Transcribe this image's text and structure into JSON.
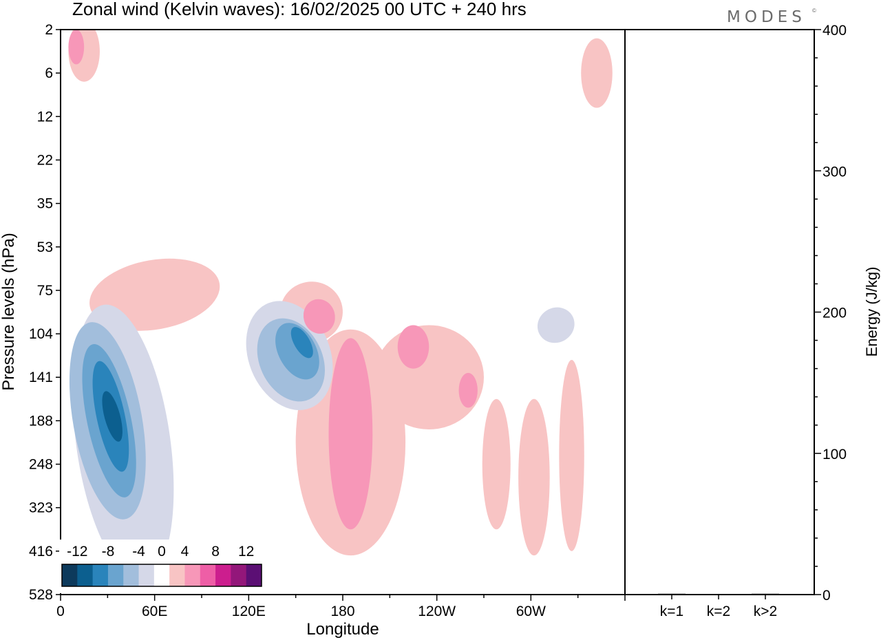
{
  "title": "Zonal wind (Kelvin waves):  16/02/2025  00 UTC  + 240 hrs",
  "brand": "MODES",
  "brand_mark": "©",
  "chart_data": [
    {
      "type": "heatmap",
      "title": "Zonal wind (Kelvin waves):  16/02/2025  00 UTC  + 240 hrs",
      "xlabel": "Longitude",
      "ylabel": "Pressure levels (hPa)",
      "x_ticks": [
        "0",
        "60E",
        "120E",
        "180",
        "120W",
        "60W"
      ],
      "x_tick_degrees": [
        0,
        60,
        120,
        180,
        240,
        300
      ],
      "xlim": [
        0,
        360
      ],
      "y_ticks": [
        "2",
        "6",
        "12",
        "22",
        "35",
        "53",
        "75",
        "104",
        "141",
        "188",
        "248",
        "323",
        "416",
        "528"
      ],
      "y_scale": "pressure levels, top to bottom",
      "colorbar": {
        "ticks": [
          "-12",
          "-8",
          "-4",
          "0",
          "4",
          "8",
          "12"
        ],
        "levels": [
          -14,
          -12,
          -10,
          -8,
          -6,
          -4,
          -2,
          2,
          4,
          6,
          8,
          10,
          12,
          14
        ],
        "colors": [
          "#0d3a5c",
          "#0c5f8f",
          "#2a84bb",
          "#6aa4cf",
          "#a2bedc",
          "#d5d8e8",
          "#ffffff",
          "#f8c4c4",
          "#f797b8",
          "#ee5ea6",
          "#cc1e8e",
          "#93177a",
          "#5b0f74"
        ]
      },
      "blobs": [
        {
          "lon": 40,
          "lev": 9.5,
          "rx": 30,
          "ry": 3.2,
          "rot": -8,
          "value": -4
        },
        {
          "lon": 30,
          "lev": 9.0,
          "rx": 22,
          "ry": 2.3,
          "rot": -10,
          "value": -6
        },
        {
          "lon": 31,
          "lev": 9.0,
          "rx": 14,
          "ry": 1.8,
          "rot": -12,
          "value": -8
        },
        {
          "lon": 32,
          "lev": 8.9,
          "rx": 9,
          "ry": 1.3,
          "rot": -12,
          "value": -10
        },
        {
          "lon": 33,
          "lev": 8.9,
          "rx": 5,
          "ry": 0.6,
          "rot": -15,
          "value": -12
        },
        {
          "lon": 80,
          "lev": 11.0,
          "rx": 14,
          "ry": 2.3,
          "rot": 0,
          "value": -2
        },
        {
          "lon": 140,
          "lev": 7.6,
          "rx": 40,
          "ry": 1.6,
          "rot": -20,
          "value": -2
        },
        {
          "lon": 146,
          "lev": 7.5,
          "rx": 26,
          "ry": 1.3,
          "rot": -22,
          "value": -4
        },
        {
          "lon": 147,
          "lev": 7.6,
          "rx": 20,
          "ry": 1.0,
          "rot": -25,
          "value": -6
        },
        {
          "lon": 151,
          "lev": 7.4,
          "rx": 12,
          "ry": 0.7,
          "rot": -28,
          "value": -8
        },
        {
          "lon": 154,
          "lev": 7.2,
          "rx": 5,
          "ry": 0.4,
          "rot": -30,
          "value": -10
        },
        {
          "lon": 240,
          "lev": 4.0,
          "rx": 20,
          "ry": 0.6,
          "rot": -18,
          "value": -2
        },
        {
          "lon": 200,
          "lev": 4.5,
          "rx": 14,
          "ry": 0.5,
          "rot": -10,
          "value": -2
        },
        {
          "lon": 320,
          "lev": 7.0,
          "rx": 35,
          "ry": 0.8,
          "rot": -25,
          "value": -2
        },
        {
          "lon": 316,
          "lev": 6.8,
          "rx": 12,
          "ry": 0.4,
          "rot": -30,
          "value": -4
        },
        {
          "lon": 246,
          "lev": 6.3,
          "rx": 12,
          "ry": 0.5,
          "rot": 0,
          "value": -2
        },
        {
          "lon": 10,
          "lev": 2.2,
          "rx": 8,
          "ry": 0.9,
          "rot": 0,
          "value": -2
        },
        {
          "lon": 105,
          "lev": 0.3,
          "rx": 22,
          "ry": 0.3,
          "rot": 0,
          "value": -2
        },
        {
          "lon": 65,
          "lev": 13.5,
          "rx": 28,
          "ry": 1.0,
          "rot": 0,
          "value": -2
        },
        {
          "lon": 240,
          "lev": 13.6,
          "rx": 12,
          "ry": 0.5,
          "rot": 0,
          "value": -2
        },
        {
          "lon": 60,
          "lev": 6.1,
          "rx": 42,
          "ry": 0.8,
          "rot": -10,
          "value": 2
        },
        {
          "lon": 160,
          "lev": 6.5,
          "rx": 20,
          "ry": 0.7,
          "rot": -10,
          "value": 2
        },
        {
          "lon": 165,
          "lev": 6.6,
          "rx": 10,
          "ry": 0.4,
          "rot": -15,
          "value": 4
        },
        {
          "lon": 185,
          "lev": 9.5,
          "rx": 35,
          "ry": 2.6,
          "rot": 0,
          "value": 2
        },
        {
          "lon": 185,
          "lev": 9.3,
          "rx": 14,
          "ry": 2.2,
          "rot": 0,
          "value": 4
        },
        {
          "lon": 235,
          "lev": 8.0,
          "rx": 35,
          "ry": 1.2,
          "rot": 0,
          "value": 2
        },
        {
          "lon": 225,
          "lev": 7.3,
          "rx": 10,
          "ry": 0.5,
          "rot": 0,
          "value": 4
        },
        {
          "lon": 260,
          "lev": 8.3,
          "rx": 6,
          "ry": 0.4,
          "rot": 0,
          "value": 4
        },
        {
          "lon": 15,
          "lev": 0.5,
          "rx": 10,
          "ry": 0.7,
          "rot": 0,
          "value": 2
        },
        {
          "lon": 10,
          "lev": 0.4,
          "rx": 5,
          "ry": 0.4,
          "rot": 0,
          "value": 4
        },
        {
          "lon": 342,
          "lev": 1.0,
          "rx": 10,
          "ry": 0.8,
          "rot": 0,
          "value": 2
        },
        {
          "lon": 326,
          "lev": 9.8,
          "rx": 8,
          "ry": 2.2,
          "rot": 0,
          "value": 2
        },
        {
          "lon": 302,
          "lev": 10.3,
          "rx": 10,
          "ry": 1.8,
          "rot": 0,
          "value": 2
        },
        {
          "lon": 278,
          "lev": 10.0,
          "rx": 9,
          "ry": 1.5,
          "rot": 0,
          "value": 2
        }
      ]
    },
    {
      "type": "bar",
      "categories": [
        "k=1",
        "k=2",
        "k>2"
      ],
      "values": [
        0.6,
        0.3,
        0.6
      ],
      "ylabel": "Energy (J/kg)",
      "ylim": [
        0,
        400
      ],
      "y_ticks": [
        "0",
        "100",
        "200",
        "300",
        "400"
      ]
    }
  ]
}
